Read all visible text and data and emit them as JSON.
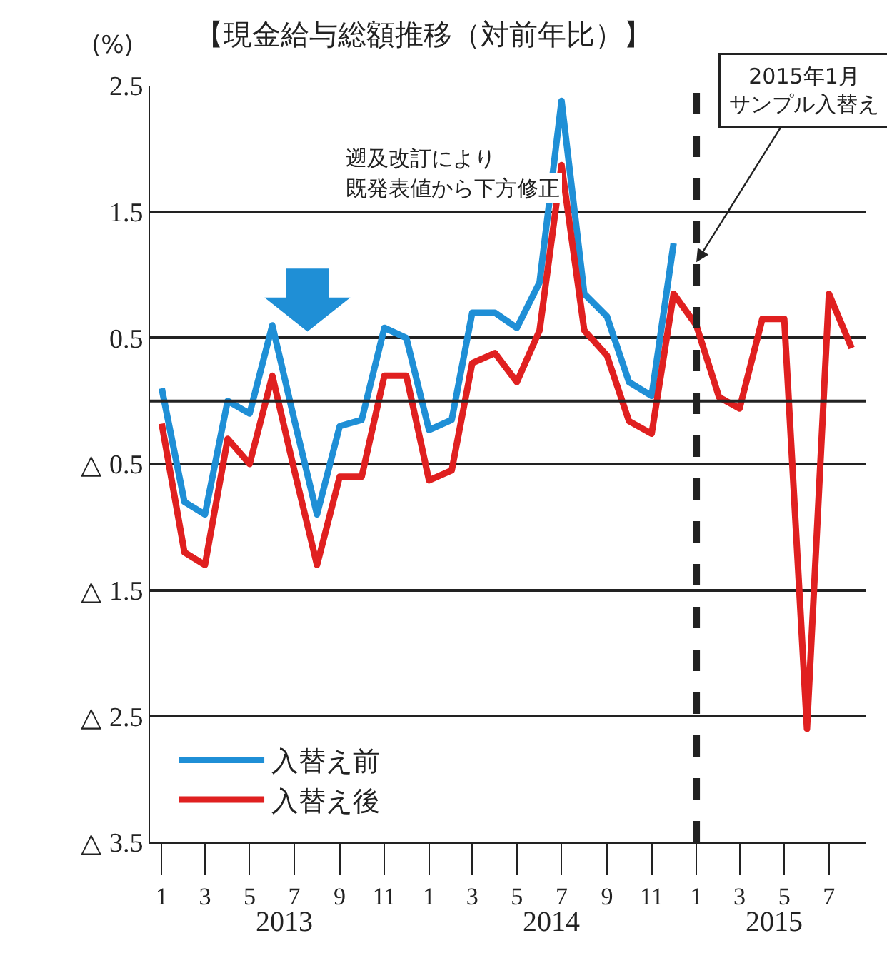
{
  "chart_data": {
    "type": "line",
    "title": "【現金給与総額推移（対前年比）】",
    "ylabel": "(%)",
    "x": [
      "2013-01",
      "2013-02",
      "2013-03",
      "2013-04",
      "2013-05",
      "2013-06",
      "2013-07",
      "2013-08",
      "2013-09",
      "2013-10",
      "2013-11",
      "2013-12",
      "2014-01",
      "2014-02",
      "2014-03",
      "2014-04",
      "2014-05",
      "2014-06",
      "2014-07",
      "2014-08",
      "2014-09",
      "2014-10",
      "2014-11",
      "2014-12",
      "2015-01",
      "2015-02",
      "2015-03",
      "2015-04",
      "2015-05",
      "2015-06",
      "2015-07",
      "2015-08"
    ],
    "series": [
      {
        "name": "入替え前",
        "color": "#1f8fd6",
        "values": [
          0.1,
          -0.8,
          -0.9,
          0.0,
          -0.1,
          0.6,
          -0.15,
          -0.9,
          -0.2,
          -0.15,
          0.58,
          0.5,
          -0.23,
          -0.15,
          0.7,
          0.7,
          0.58,
          0.94,
          2.38,
          0.85,
          0.67,
          0.15,
          0.04,
          1.25,
          null,
          null,
          null,
          null,
          null,
          null,
          null,
          null
        ]
      },
      {
        "name": "入替え後",
        "color": "#e02020",
        "values": [
          -0.18,
          -1.2,
          -1.3,
          -0.3,
          -0.5,
          0.2,
          -0.55,
          -1.3,
          -0.6,
          -0.6,
          0.2,
          0.2,
          -0.63,
          -0.55,
          0.3,
          0.38,
          0.15,
          0.56,
          1.87,
          0.56,
          0.36,
          -0.16,
          -0.26,
          0.85,
          0.6,
          0.03,
          -0.06,
          0.65,
          0.65,
          -2.6,
          0.85,
          0.42
        ]
      }
    ],
    "xlim": [
      "2012-12-16",
      "2015-08-20"
    ],
    "xticks": [
      {
        "value": "2013-01",
        "label": "1"
      },
      {
        "value": "2013-03",
        "label": "3"
      },
      {
        "value": "2013-05",
        "label": "5"
      },
      {
        "value": "2013-07",
        "label": "7"
      },
      {
        "value": "2013-09",
        "label": "9"
      },
      {
        "value": "2013-11",
        "label": "11"
      },
      {
        "value": "2014-01",
        "label": "1"
      },
      {
        "value": "2014-03",
        "label": "3"
      },
      {
        "value": "2014-05",
        "label": "5"
      },
      {
        "value": "2014-07",
        "label": "7"
      },
      {
        "value": "2014-09",
        "label": "9"
      },
      {
        "value": "2014-11",
        "label": "11"
      },
      {
        "value": "2015-01",
        "label": "1"
      },
      {
        "value": "2015-03",
        "label": "3"
      },
      {
        "value": "2015-05",
        "label": "5"
      },
      {
        "value": "2015-07",
        "label": "7"
      }
    ],
    "ylim": [
      -3.5,
      2.5
    ],
    "yticks": [
      2.5,
      1.5,
      0.5,
      {
        "value": -0.5,
        "label": "△ 0.5"
      },
      {
        "value": -1.5,
        "label": "△ 1.5"
      },
      {
        "value": -2.5,
        "label": "△ 2.5"
      },
      {
        "value": -3.5,
        "label": "△ 3.5"
      }
    ],
    "grid": "y",
    "legend": "bottom left",
    "marker": "none",
    "line_style": "solid",
    "ref_lines": [
      {
        "axis": "y",
        "value": 0,
        "color": "#222222",
        "line_style": "solid"
      },
      {
        "axis": "x",
        "value": "2015-01",
        "label": "2015年1月サンプル入替え",
        "color": "#222222",
        "line_style": "dashed"
      }
    ],
    "annotations": [
      "遡及改訂により",
      "既発表値から下方修正",
      "2013",
      "2014",
      "2015"
    ]
  }
}
